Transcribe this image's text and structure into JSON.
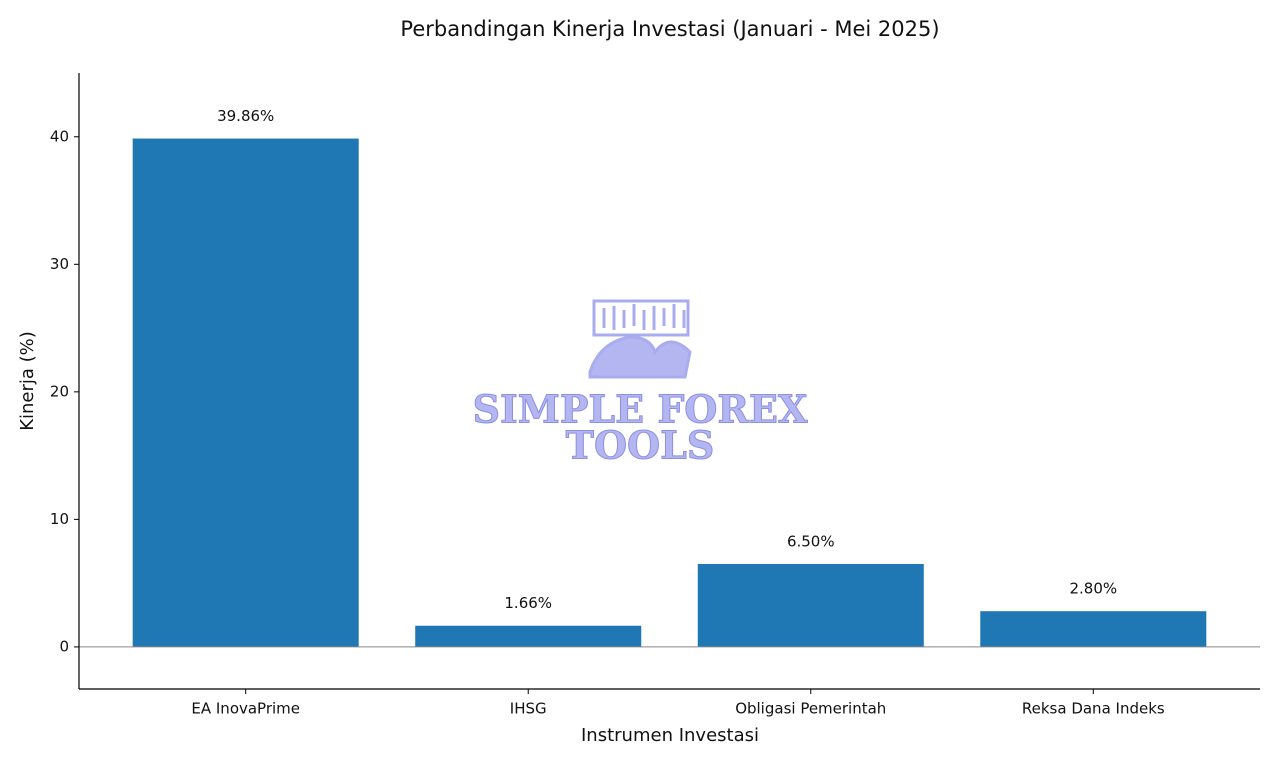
{
  "chart_data": {
    "type": "bar",
    "title": "Perbandingan Kinerja Investasi (Januari - Mei 2025)",
    "x_label": "Instrumen Investasi",
    "y_label": "Kinerja (%)",
    "watermark": [
      "SIMPLE FOREX",
      "TOOLS"
    ],
    "categories": [
      "EA InovaPrime",
      "IHSG",
      "Obligasi Pemerintah",
      "Reksa Dana Indeks"
    ],
    "values": [
      39.86,
      1.66,
      6.5,
      2.8
    ],
    "value_labels": [
      "39.86%",
      "1.66%",
      "6.50%",
      "2.80%"
    ],
    "color": "#1f77b4",
    "ylim": [
      -3.3,
      45
    ],
    "yticks": [
      0,
      10,
      20,
      30,
      40
    ],
    "grid": false
  }
}
